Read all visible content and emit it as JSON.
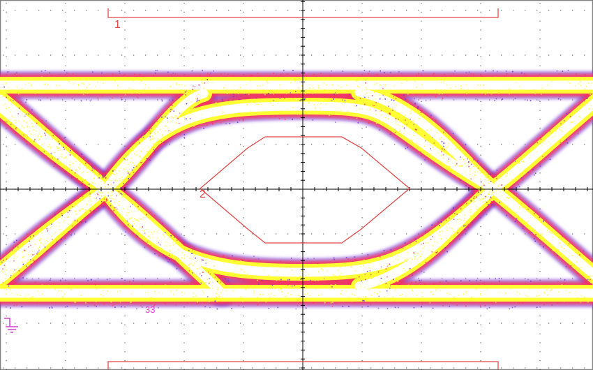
{
  "screen": {
    "type": "oscilloscope-eye-diagram",
    "grid": {
      "divisions_x": 10,
      "divisions_y": 8,
      "subdivisions": 5,
      "center_axes": true
    }
  },
  "waveform": {
    "name": "eye-diagram",
    "colors": {
      "hot": "#ffffff",
      "warm": "#ffff33",
      "mid": "#ff3355",
      "cool": "#6a2bd6"
    }
  },
  "masks": [
    {
      "id": "mask-1",
      "label": "1",
      "color": "#e04848"
    },
    {
      "id": "mask-2",
      "label": "2",
      "color": "#e04848"
    },
    {
      "id": "mask-3",
      "label": "",
      "color": "#e04848"
    }
  ],
  "channel_marker": {
    "label": "33",
    "color": "#e23bd6"
  },
  "ground_marker": {
    "icon": "ground-icon",
    "color": "#d940d0"
  },
  "colors": {
    "grid": "#000000",
    "frame": "#7f7f7f"
  }
}
